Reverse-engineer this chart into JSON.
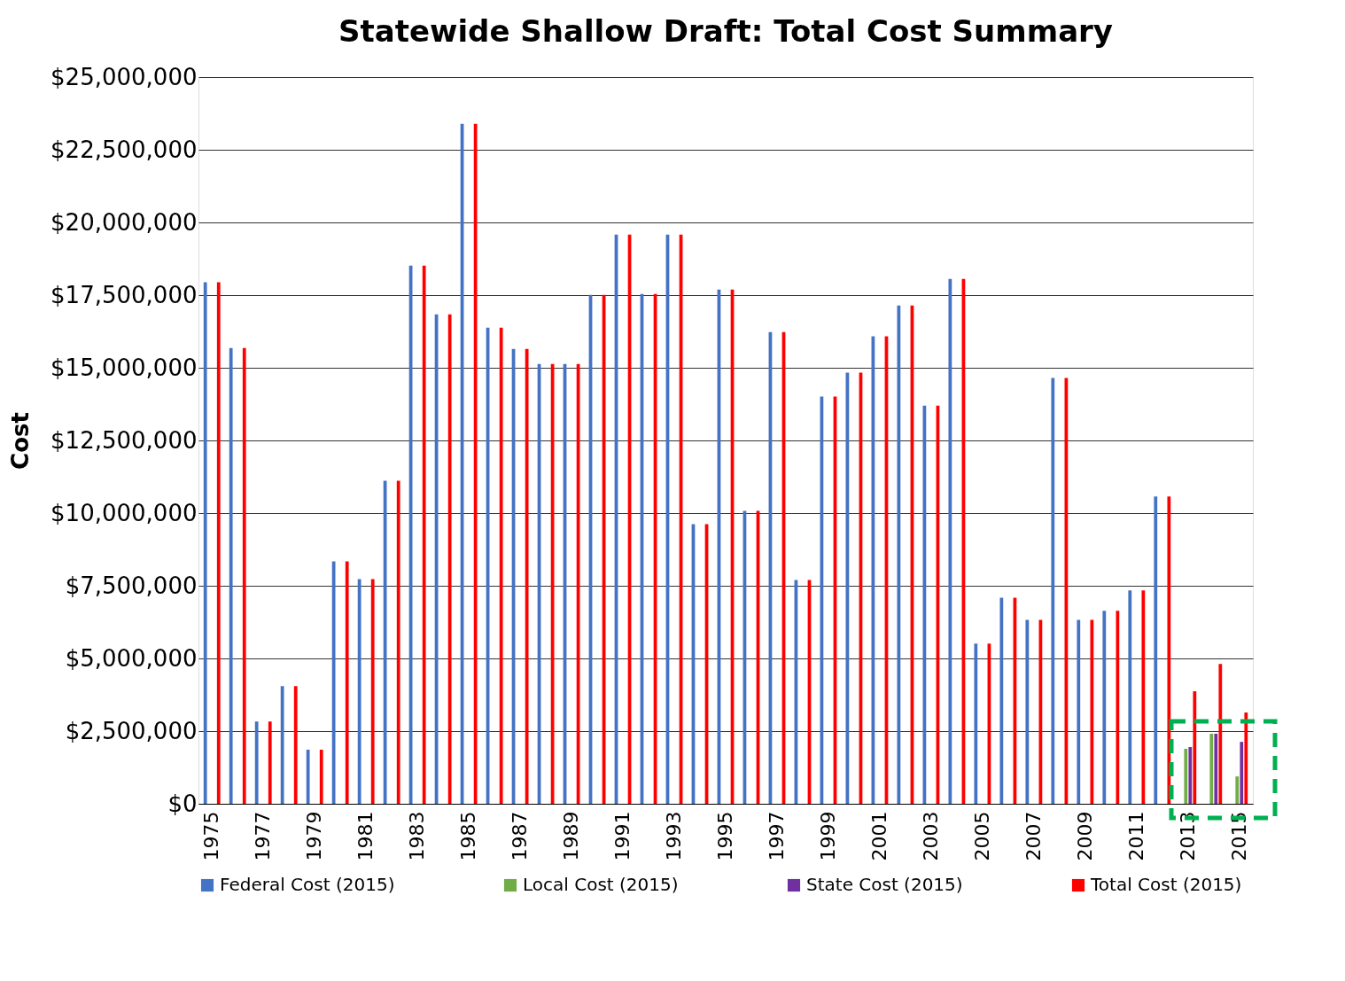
{
  "chart_data": {
    "type": "bar",
    "title": "Statewide Shallow Draft: Total Cost Summary",
    "ylabel": "Cost",
    "categories": [
      "1975",
      null,
      "1977",
      null,
      "1979",
      null,
      "1981",
      null,
      "1983",
      null,
      "1985",
      null,
      "1987",
      null,
      "1989",
      null,
      "1991",
      null,
      "1993",
      null,
      "1995",
      null,
      "1997",
      null,
      "1999",
      null,
      "2001",
      null,
      "2003",
      null,
      "2005",
      null,
      "2007",
      null,
      "2009",
      null,
      "2011",
      null,
      "2013",
      null,
      "2015"
    ],
    "series": [
      {
        "name": "Federal Cost (2015)",
        "color": "#4472c4",
        "values": [
          17940000,
          15680000,
          2830000,
          4050000,
          1860000,
          8340000,
          7730000,
          11110000,
          18510000,
          16840000,
          23390000,
          16380000,
          15650000,
          15130000,
          15130000,
          17510000,
          19580000,
          17540000,
          19580000,
          9620000,
          17690000,
          10080000,
          16230000,
          7700000,
          14010000,
          14830000,
          16080000,
          17140000,
          13700000,
          18060000,
          5510000,
          7090000,
          6330000,
          14650000,
          6330000,
          6640000,
          7340000,
          10570000,
          null,
          null,
          null
        ]
      },
      {
        "name": "Local Cost (2015)",
        "color": "#70ad47",
        "values": [
          null,
          null,
          null,
          null,
          null,
          null,
          null,
          null,
          null,
          null,
          null,
          null,
          null,
          null,
          null,
          null,
          null,
          null,
          null,
          null,
          null,
          null,
          null,
          null,
          null,
          null,
          null,
          null,
          null,
          null,
          null,
          null,
          null,
          null,
          null,
          null,
          null,
          null,
          1890000,
          2410000,
          940000
        ]
      },
      {
        "name": "State Cost (2015)",
        "color": "#7030a0",
        "values": [
          null,
          null,
          null,
          null,
          null,
          null,
          null,
          null,
          null,
          null,
          null,
          null,
          null,
          null,
          null,
          null,
          null,
          null,
          null,
          null,
          null,
          null,
          null,
          null,
          null,
          null,
          null,
          null,
          null,
          null,
          null,
          null,
          null,
          null,
          null,
          null,
          null,
          null,
          1950000,
          2410000,
          2130000
        ]
      },
      {
        "name": "Total Cost (2015)",
        "color": "#ff0000",
        "values": [
          17940000,
          15680000,
          2830000,
          4050000,
          1860000,
          8340000,
          7730000,
          11110000,
          18510000,
          16840000,
          23390000,
          16380000,
          15650000,
          15130000,
          15130000,
          17510000,
          19580000,
          17540000,
          19580000,
          9620000,
          17690000,
          10080000,
          16230000,
          7700000,
          14010000,
          14830000,
          16080000,
          17140000,
          13700000,
          18060000,
          5510000,
          7090000,
          6330000,
          14650000,
          6330000,
          6640000,
          7340000,
          10570000,
          3870000,
          4810000,
          3140000
        ]
      }
    ],
    "ylim": [
      0,
      25000000
    ],
    "yticks": [
      {
        "value": 0,
        "label": "$0"
      },
      {
        "value": 2500000,
        "label": "$2,500,000"
      },
      {
        "value": 5000000,
        "label": "$5,000,000"
      },
      {
        "value": 7500000,
        "label": "$7,500,000"
      },
      {
        "value": 10000000,
        "label": "$10,000,000"
      },
      {
        "value": 12500000,
        "label": "$12,500,000"
      },
      {
        "value": 15000000,
        "label": "$15,000,000"
      },
      {
        "value": 17500000,
        "label": "$17,500,000"
      },
      {
        "value": 20000000,
        "label": "$20,000,000"
      },
      {
        "value": 22500000,
        "label": "$22,500,000"
      },
      {
        "value": 25000000,
        "label": "$25,000,000"
      }
    ],
    "grid": "y",
    "legend": "bottom"
  }
}
